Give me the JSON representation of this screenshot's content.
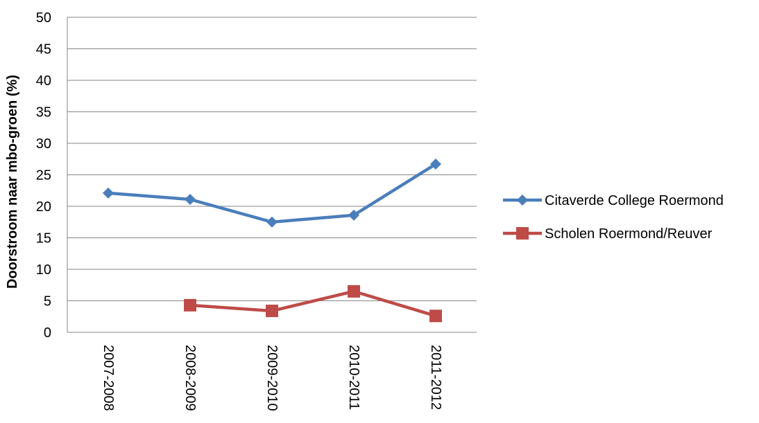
{
  "chart_data": {
    "type": "line",
    "title": "",
    "xlabel": "",
    "ylabel": "Doorstroom naar mbo-groen (%)",
    "categories": [
      "2007-2008",
      "2008-2009",
      "2009-2010",
      "2010-2011",
      "2011-2012"
    ],
    "ylim": [
      0,
      50
    ],
    "yticks": [
      0,
      5,
      10,
      15,
      20,
      25,
      30,
      35,
      40,
      45,
      50
    ],
    "grid": true,
    "legend_position": "right",
    "series": [
      {
        "name": "Citaverde College Roermond",
        "values": [
          22.1,
          21.1,
          17.5,
          18.6,
          26.7
        ],
        "color": "#4a7ebb",
        "marker": "diamond"
      },
      {
        "name": "Scholen Roermond/Reuver",
        "values": [
          null,
          4.3,
          3.4,
          6.5,
          2.6
        ],
        "color": "#be4b48",
        "marker": "square"
      }
    ]
  }
}
